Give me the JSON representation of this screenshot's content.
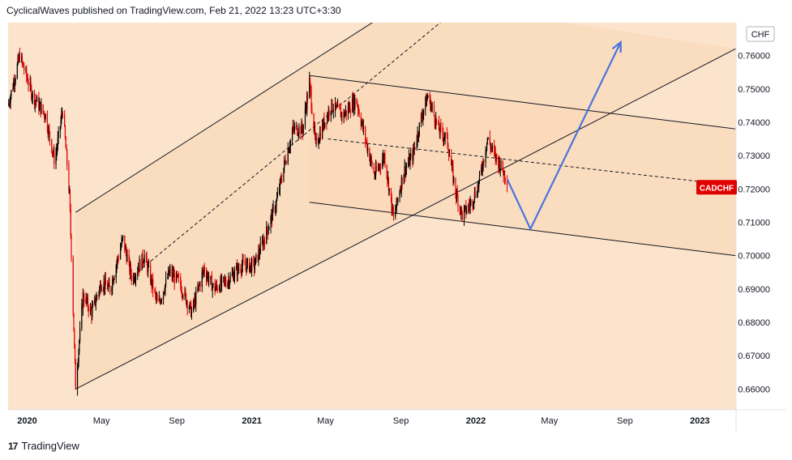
{
  "header": {
    "published": "CyclicalWaves published on TradingView.com, Feb 21, 2022 13:23 UTC+3:30"
  },
  "footer": {
    "logo_mark": "17",
    "brand": "TradingView"
  },
  "colors": {
    "background": "#fbe3cc",
    "channel_fill": "#f9d9b9",
    "candle_up": "#000000",
    "candle_down": "#e00000",
    "forecast": "#4a74e0",
    "badge": "#e00000"
  },
  "chart_data": {
    "type": "candlestick",
    "symbol": "CADCHF",
    "currency": "CHF",
    "last_price_label": "CADCHF",
    "y_axis": {
      "ticks": [
        "0.76000",
        "0.75000",
        "0.74000",
        "0.73000",
        "0.72000",
        "0.71000",
        "0.70000",
        "0.69000",
        "0.68000",
        "0.67000",
        "0.66000"
      ]
    },
    "x_axis": {
      "ticks": [
        "2020",
        "May",
        "Sep",
        "2021",
        "May",
        "Sep",
        "2022",
        "May",
        "Sep",
        "2023"
      ],
      "bold": [
        "2020",
        "2021",
        "2022",
        "2023"
      ]
    },
    "price_path": [
      [
        "2019-12-01",
        0.745
      ],
      [
        "2019-12-20",
        0.76
      ],
      [
        "2020-01-10",
        0.748
      ],
      [
        "2020-01-31",
        0.742
      ],
      [
        "2020-02-15",
        0.728
      ],
      [
        "2020-02-28",
        0.744
      ],
      [
        "2020-03-10",
        0.718
      ],
      [
        "2020-03-20",
        0.661
      ],
      [
        "2020-04-01",
        0.688
      ],
      [
        "2020-04-15",
        0.683
      ],
      [
        "2020-05-01",
        0.692
      ],
      [
        "2020-05-15",
        0.69
      ],
      [
        "2020-06-05",
        0.705
      ],
      [
        "2020-06-20",
        0.693
      ],
      [
        "2020-07-10",
        0.7
      ],
      [
        "2020-08-01",
        0.685
      ],
      [
        "2020-08-20",
        0.695
      ],
      [
        "2020-09-05",
        0.692
      ],
      [
        "2020-09-25",
        0.683
      ],
      [
        "2020-10-15",
        0.696
      ],
      [
        "2020-11-01",
        0.69
      ],
      [
        "2020-11-25",
        0.693
      ],
      [
        "2020-12-15",
        0.697
      ],
      [
        "2021-01-05",
        0.697
      ],
      [
        "2021-01-25",
        0.707
      ],
      [
        "2021-02-10",
        0.716
      ],
      [
        "2021-02-25",
        0.729
      ],
      [
        "2021-03-10",
        0.738
      ],
      [
        "2021-03-25",
        0.738
      ],
      [
        "2021-04-05",
        0.752
      ],
      [
        "2021-04-15",
        0.733
      ],
      [
        "2021-04-25",
        0.738
      ],
      [
        "2021-05-10",
        0.745
      ],
      [
        "2021-05-30",
        0.742
      ],
      [
        "2021-06-20",
        0.747
      ],
      [
        "2021-07-05",
        0.735
      ],
      [
        "2021-07-20",
        0.724
      ],
      [
        "2021-08-05",
        0.73
      ],
      [
        "2021-08-20",
        0.711
      ],
      [
        "2021-09-05",
        0.725
      ],
      [
        "2021-09-20",
        0.73
      ],
      [
        "2021-10-05",
        0.742
      ],
      [
        "2021-10-15",
        0.748
      ],
      [
        "2021-11-01",
        0.738
      ],
      [
        "2021-11-15",
        0.735
      ],
      [
        "2021-11-28",
        0.72
      ],
      [
        "2021-12-10",
        0.712
      ],
      [
        "2021-12-25",
        0.716
      ],
      [
        "2022-01-05",
        0.721
      ],
      [
        "2022-01-20",
        0.735
      ],
      [
        "2022-02-01",
        0.73
      ],
      [
        "2022-02-10",
        0.727
      ],
      [
        "2022-02-21",
        0.723
      ]
    ],
    "channels": [
      {
        "name": "ascending",
        "lower": [
          [
            "2020-03-20",
            0.66
          ],
          [
            "2023-02-28",
            0.762
          ]
        ],
        "upper": [
          [
            "2020-03-20",
            0.713
          ],
          [
            "2021-09-15",
            0.777
          ]
        ],
        "median": [
          [
            "2020-06-15",
            0.693
          ],
          [
            "2022-01-10",
            0.78
          ]
        ]
      },
      {
        "name": "descending",
        "upper": [
          [
            "2021-04-05",
            0.754
          ],
          [
            "2023-02-28",
            0.738
          ]
        ],
        "lower": [
          [
            "2021-04-05",
            0.716
          ],
          [
            "2023-02-28",
            0.7
          ]
        ],
        "median": [
          [
            "2021-05-05",
            0.735
          ],
          [
            "2023-02-28",
            0.721
          ]
        ]
      }
    ],
    "forecast_path": [
      [
        "2022-02-21",
        0.723
      ],
      [
        "2022-03-31",
        0.708
      ],
      [
        "2022-08-25",
        0.764
      ]
    ]
  }
}
